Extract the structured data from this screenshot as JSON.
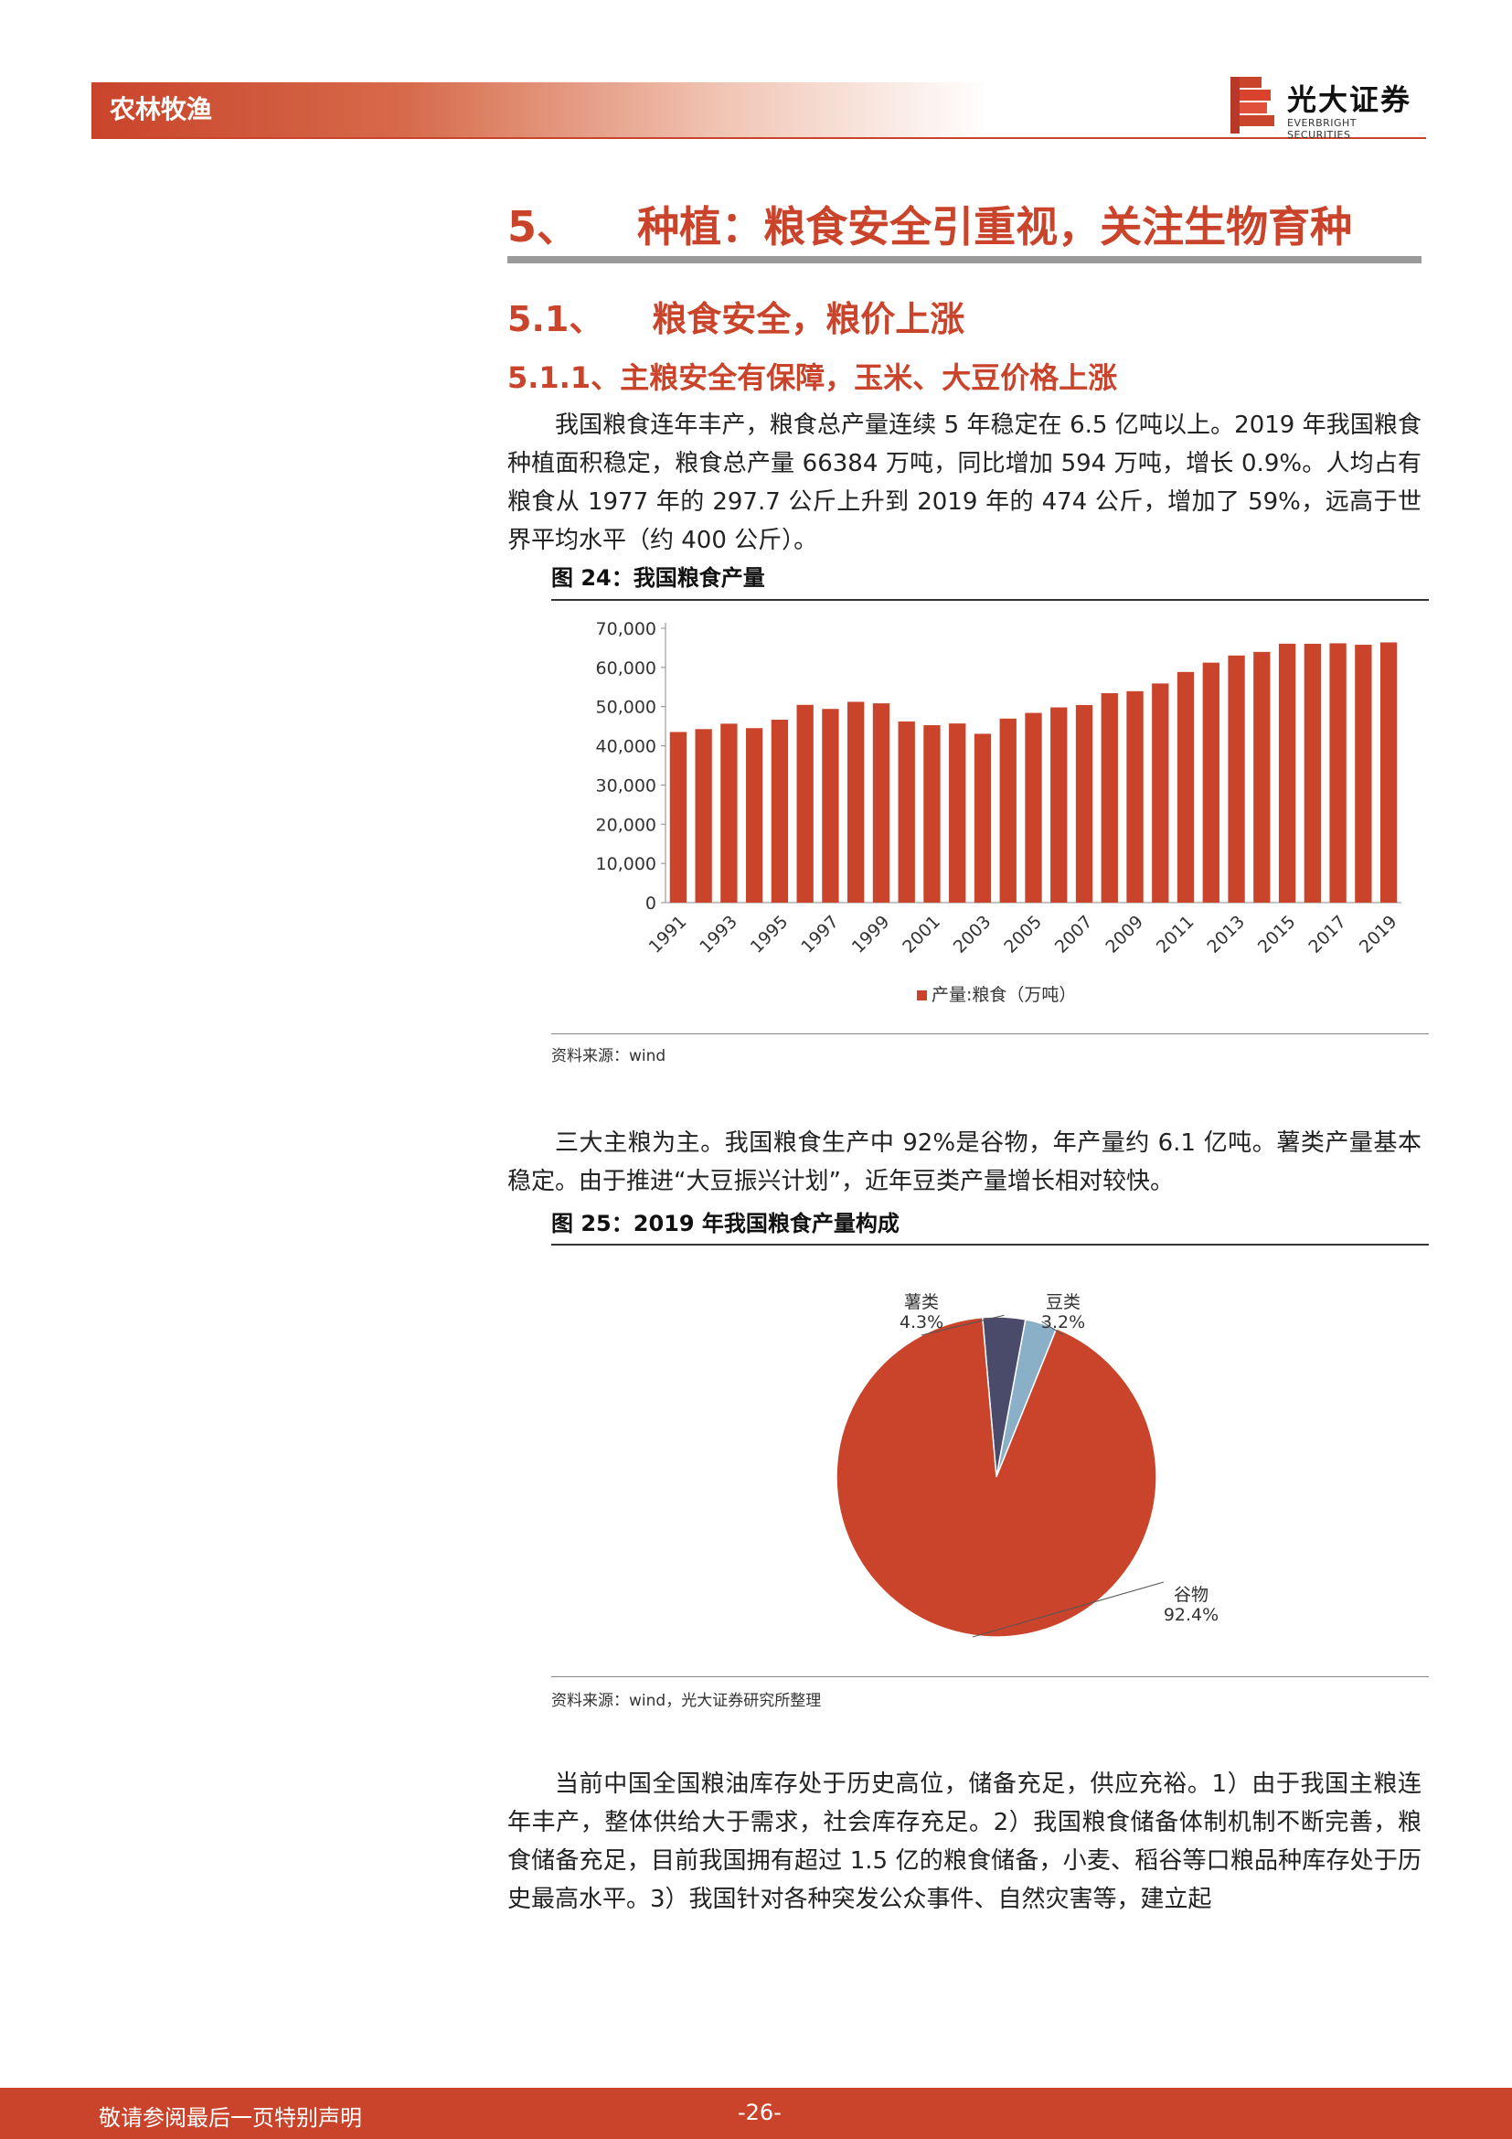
{
  "header": {
    "sector": "农林牧渔",
    "logo_name": "光大证券",
    "logo_en": "EVERBRIGHT SECURITIES"
  },
  "section": {
    "h1": "5、    种植：粮食安全引重视，关注生物育种",
    "h2": "5.1、    粮食安全，粮价上涨",
    "h3": "5.1.1、主粮安全有保障，玉米、大豆价格上涨"
  },
  "para1": "我国粮食连年丰产，粮食总产量连续 5 年稳定在 6.5 亿吨以上。2019 年我国粮食种植面积稳定，粮食总产量 66384 万吨，同比增加 594 万吨，增长 0.9%。人均占有粮食从 1977 年的 297.7 公斤上升到 2019 年的 474 公斤，增加了 59%，远高于世界平均水平（约 400 公斤）。",
  "fig24": {
    "title": "图 24：我国粮食产量",
    "source": "资料来源：wind"
  },
  "para2": "三大主粮为主。我国粮食生产中 92%是谷物，年产量约 6.1 亿吨。薯类产量基本稳定。由于推进“大豆振兴计划”，近年豆类产量增长相对较快。",
  "fig25": {
    "title": "图 25：2019 年我国粮食产量构成",
    "source": "资料来源：wind，光大证券研究所整理"
  },
  "para3": "当前中国全国粮油库存处于历史高位，储备充足，供应充裕。1）由于我国主粮连年丰产，整体供给大于需求，社会库存充足。2）我国粮食储备体制机制不断完善，粮食储备充足，目前我国拥有超过 1.5 亿的粮食储备，小麦、稻谷等口粮品种库存处于历史最高水平。3）我国针对各种突发公众事件、自然灾害等，建立起",
  "footer": {
    "notice": "敬请参阅最后一页特别声明",
    "page": "-26-"
  },
  "colors": {
    "accent": "#c9442b",
    "tuber": "#4a4a6a",
    "soy": "#8ab0c8"
  },
  "chart_data": [
    {
      "type": "bar",
      "x": [
        1991,
        1992,
        1993,
        1994,
        1995,
        1996,
        1997,
        1998,
        1999,
        2000,
        2001,
        2002,
        2003,
        2004,
        2005,
        2006,
        2007,
        2008,
        2009,
        2010,
        2011,
        2012,
        2013,
        2014,
        2015,
        2016,
        2017,
        2018,
        2019
      ],
      "x_tick_labels": [
        "1991",
        "1993",
        "1995",
        "1997",
        "1999",
        "2001",
        "2003",
        "2005",
        "2007",
        "2009",
        "2011",
        "2013",
        "2015",
        "2017",
        "2019"
      ],
      "series": [
        {
          "name": "产量:粮食（万吨）",
          "values": [
            43529,
            44266,
            45649,
            44510,
            46662,
            50454,
            49417,
            51230,
            50839,
            46218,
            45264,
            45706,
            43070,
            46947,
            48402,
            49804,
            50414,
            53434,
            53941,
            55911,
            58849,
            61223,
            63048,
            63965,
            66060,
            66044,
            66161,
            65789,
            66384
          ]
        }
      ],
      "y_ticks": [
        "0",
        "10,000",
        "20,000",
        "30,000",
        "40,000",
        "50,000",
        "60,000",
        "70,000"
      ],
      "ylim": [
        0,
        70000
      ],
      "grid": false,
      "legend": "bottom"
    },
    {
      "type": "pie",
      "slices": [
        {
          "label": "谷物",
          "value": 92.4,
          "display": "92.4%",
          "color": "#c9442b"
        },
        {
          "label": "薯类",
          "value": 4.3,
          "display": "4.3%",
          "color": "#4a4a6a"
        },
        {
          "label": "豆类",
          "value": 3.2,
          "display": "3.2%",
          "color": "#8ab0c8"
        }
      ]
    }
  ]
}
